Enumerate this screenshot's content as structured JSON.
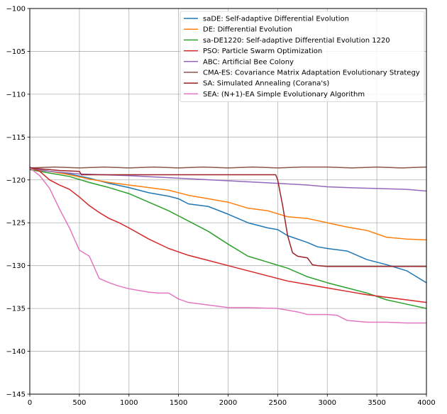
{
  "chart_data": {
    "type": "line",
    "title": "",
    "xlabel": "",
    "ylabel": "",
    "xlim": [
      0,
      4000
    ],
    "ylim": [
      -145,
      -100
    ],
    "xticks": [
      0,
      500,
      1000,
      1500,
      2000,
      2500,
      3000,
      3500,
      4000
    ],
    "xtick_labels": [
      "0",
      "500",
      "1000",
      "1500",
      "2000",
      "2500",
      "3000",
      "3500",
      "4000"
    ],
    "yticks": [
      -145,
      -140,
      -135,
      -130,
      -125,
      -120,
      -115,
      -110,
      -105,
      -100
    ],
    "ytick_labels": [
      "−145",
      "−140",
      "−135",
      "−130",
      "−125",
      "−120",
      "−115",
      "−110",
      "−105",
      "−100"
    ],
    "grid": true,
    "legend_position": "top-right",
    "series": [
      {
        "name": "saDE: Self-adaptive Differential Evolution",
        "color": "#1f77b4",
        "x": [
          0,
          200,
          400,
          600,
          800,
          1000,
          1200,
          1400,
          1500,
          1600,
          1800,
          2000,
          2200,
          2400,
          2500,
          2600,
          2800,
          2900,
          3000,
          3200,
          3400,
          3600,
          3800,
          4000
        ],
        "y": [
          -118.8,
          -119.0,
          -119.3,
          -119.8,
          -120.4,
          -120.9,
          -121.5,
          -121.9,
          -122.2,
          -122.8,
          -123.1,
          -124.0,
          -125.0,
          -125.6,
          -125.8,
          -126.5,
          -127.3,
          -127.8,
          -128.0,
          -128.3,
          -129.3,
          -129.9,
          -130.6,
          -132.0
        ]
      },
      {
        "name": "DE: Differential Evolution",
        "color": "#ff7f0e",
        "x": [
          0,
          200,
          400,
          600,
          800,
          1000,
          1200,
          1400,
          1600,
          1800,
          2000,
          2200,
          2400,
          2600,
          2800,
          3000,
          3200,
          3400,
          3600,
          3800,
          4000
        ],
        "y": [
          -118.7,
          -119.0,
          -119.4,
          -119.9,
          -120.3,
          -120.6,
          -120.9,
          -121.2,
          -121.8,
          -122.2,
          -122.6,
          -123.3,
          -123.6,
          -124.3,
          -124.5,
          -125.0,
          -125.5,
          -125.9,
          -126.7,
          -126.9,
          -127.0
        ]
      },
      {
        "name": "sa-DE1220: Self-adaptive Differential Evolution 1220",
        "color": "#2ca02c",
        "x": [
          0,
          200,
          400,
          600,
          800,
          1000,
          1200,
          1400,
          1600,
          1800,
          2000,
          2200,
          2400,
          2600,
          2800,
          3000,
          3200,
          3400,
          3600,
          3800,
          4000
        ],
        "y": [
          -118.8,
          -119.2,
          -119.6,
          -120.3,
          -120.9,
          -121.6,
          -122.6,
          -123.6,
          -124.8,
          -126.0,
          -127.5,
          -128.9,
          -129.6,
          -130.3,
          -131.3,
          -132.0,
          -132.6,
          -133.2,
          -134.0,
          -134.5,
          -135.0
        ]
      },
      {
        "name": "PSO: Particle Swarm Optimization",
        "color": "#d62728",
        "x": [
          0,
          100,
          200,
          300,
          400,
          500,
          600,
          700,
          800,
          900,
          1000,
          1200,
          1400,
          1600,
          1800,
          2000,
          2200,
          2400,
          2600,
          2800,
          3000,
          3200,
          3400,
          3600,
          3800,
          4000
        ],
        "y": [
          -118.5,
          -119.0,
          -120.0,
          -120.6,
          -121.1,
          -122.0,
          -123.0,
          -123.8,
          -124.5,
          -125.0,
          -125.6,
          -126.9,
          -128.0,
          -128.8,
          -129.4,
          -130.0,
          -130.6,
          -131.2,
          -131.8,
          -132.2,
          -132.6,
          -133.0,
          -133.4,
          -133.7,
          -134.0,
          -134.3
        ]
      },
      {
        "name": "ABC: Artificial Bee Colony",
        "color": "#9467bd",
        "x": [
          0,
          200,
          500,
          1000,
          1500,
          2000,
          2500,
          2800,
          3000,
          3200,
          3500,
          3800,
          4000
        ],
        "y": [
          -118.6,
          -119.0,
          -119.3,
          -119.5,
          -119.8,
          -120.1,
          -120.4,
          -120.6,
          -120.8,
          -120.9,
          -121.0,
          -121.1,
          -121.3
        ]
      },
      {
        "name": "CMA-ES: Covariance Matrix Adaptation Evolutionary Strategy",
        "color": "#8c564b",
        "x": [
          0,
          250,
          500,
          750,
          1000,
          1250,
          1500,
          1750,
          2000,
          2250,
          2500,
          2750,
          3000,
          3250,
          3500,
          3750,
          4000
        ],
        "y": [
          -118.6,
          -118.5,
          -118.6,
          -118.5,
          -118.6,
          -118.5,
          -118.6,
          -118.5,
          -118.6,
          -118.5,
          -118.6,
          -118.5,
          -118.5,
          -118.6,
          -118.5,
          -118.6,
          -118.5
        ]
      },
      {
        "name": "SA: Simulated Annealing (Corana's)",
        "color": "#9b2226",
        "x": [
          0,
          300,
          500,
          520,
          1000,
          1500,
          2000,
          2400,
          2480,
          2500,
          2550,
          2600,
          2650,
          2700,
          2750,
          2800,
          2850,
          2900,
          3000,
          3500,
          4000
        ],
        "y": [
          -118.6,
          -118.9,
          -119.0,
          -119.4,
          -119.4,
          -119.4,
          -119.4,
          -119.4,
          -119.4,
          -120.0,
          -123.0,
          -126.5,
          -128.5,
          -128.9,
          -129.0,
          -129.1,
          -129.9,
          -130.0,
          -130.1,
          -130.1,
          -130.1
        ]
      },
      {
        "name": "SEA: (N+1)-EA Simple Evolutionary Algorithm",
        "color": "#e377c2",
        "x": [
          0,
          100,
          200,
          300,
          400,
          500,
          600,
          700,
          800,
          900,
          1000,
          1100,
          1200,
          1300,
          1400,
          1500,
          1600,
          1800,
          2000,
          2200,
          2500,
          2700,
          2800,
          3000,
          3100,
          3200,
          3400,
          3600,
          3800,
          4000
        ],
        "y": [
          -118.6,
          -119.5,
          -121.0,
          -123.4,
          -125.6,
          -128.2,
          -128.9,
          -131.5,
          -132.0,
          -132.4,
          -132.7,
          -132.9,
          -133.1,
          -133.2,
          -133.2,
          -133.9,
          -134.3,
          -134.6,
          -134.9,
          -134.9,
          -135.0,
          -135.4,
          -135.7,
          -135.7,
          -135.8,
          -136.4,
          -136.6,
          -136.6,
          -136.7,
          -136.7
        ]
      }
    ]
  }
}
